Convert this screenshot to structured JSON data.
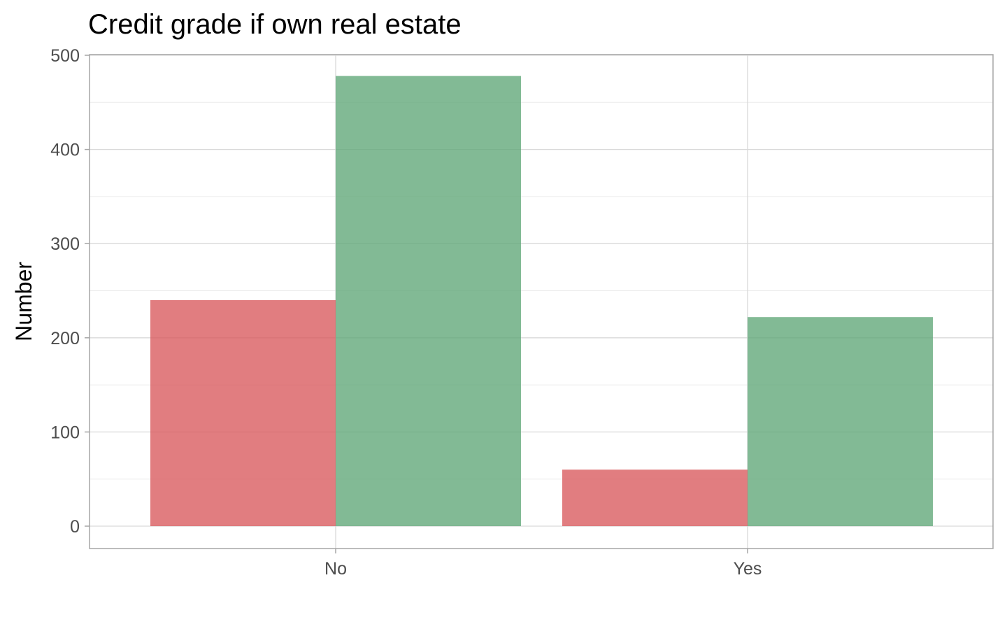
{
  "chart_data": {
    "type": "bar",
    "title": "Credit grade if own real estate",
    "xlabel": "",
    "ylabel": "Number",
    "categories": [
      "No",
      "Yes"
    ],
    "series": [
      {
        "values": [
          240,
          60
        ],
        "color": "#d9595c"
      },
      {
        "values": [
          478,
          222
        ],
        "color": "#5fa677"
      }
    ],
    "ylim": [
      0,
      500
    ],
    "yticks": [
      0,
      100,
      200,
      300,
      400,
      500
    ],
    "ytick_labels": [
      "0",
      "100",
      "200",
      "300",
      "400",
      "500"
    ],
    "grid": true,
    "legend": "none"
  }
}
